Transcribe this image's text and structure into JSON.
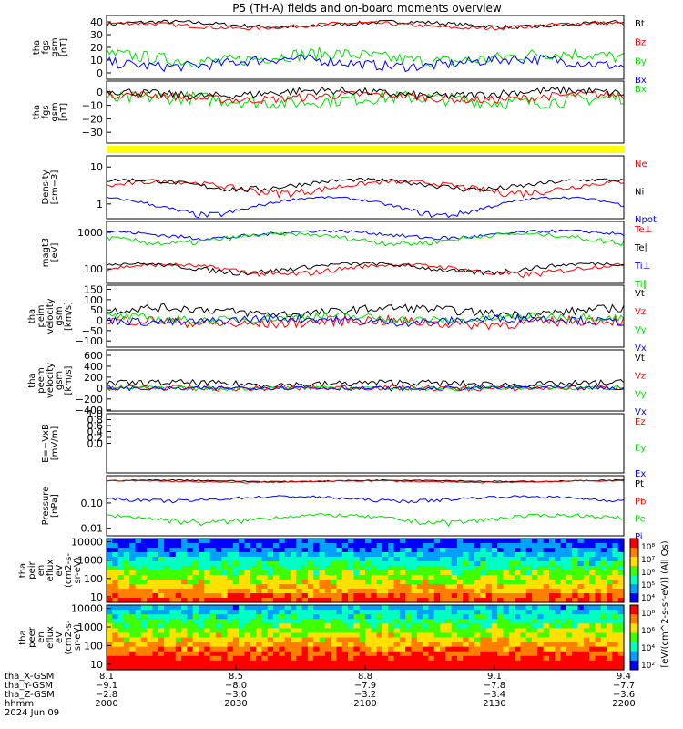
{
  "title": "P5 (TH-A) fields and on-board moments overview",
  "date_label": "2024 Jun 09",
  "colors": {
    "black": "#000000",
    "red": "#ff0000",
    "green": "#00e000",
    "blue": "#0000ff",
    "yellow": "#ffff00"
  },
  "chart_data": [
    {
      "type": "line",
      "panel": "tha_fgs_gsm",
      "ylabel": [
        "tha",
        "fgs",
        "gsm",
        "[nT]"
      ],
      "ylim": [
        -5,
        45
      ],
      "ticks": [
        {
          "v": 40,
          "label": "40"
        },
        {
          "v": 30,
          "label": "30"
        },
        {
          "v": 20,
          "label": "20"
        },
        {
          "v": 10,
          "label": "10"
        },
        {
          "v": 0,
          "label": "0"
        }
      ],
      "series": [
        {
          "name": "Bt",
          "color": "#000000",
          "base": 38,
          "amp": 2,
          "noise": 1.5
        },
        {
          "name": "Bz",
          "color": "#ff0000",
          "base": 37,
          "amp": 2,
          "noise": 1.5
        },
        {
          "name": "By",
          "color": "#00e000",
          "base": 12,
          "amp": 3,
          "noise": 5
        },
        {
          "name": "Bx",
          "color": "#0000ff",
          "base": 8,
          "amp": 3,
          "noise": 4
        }
      ]
    },
    {
      "type": "line",
      "panel": "tha_fgs_gsm_bx",
      "ylabel": [
        "tha",
        "fgs",
        "gsm",
        "[nT]"
      ],
      "ylim": [
        -38,
        8
      ],
      "ticks": [
        {
          "v": 0,
          "label": "0"
        },
        {
          "v": -10,
          "label": "−10"
        },
        {
          "v": -20,
          "label": "−20"
        },
        {
          "v": -30,
          "label": "−30"
        }
      ],
      "series": [
        {
          "name": "Bx",
          "color": "#00e000",
          "base": -6,
          "amp": 2,
          "noise": 5
        },
        {
          "name": "",
          "color": "#ff0000",
          "base": -4,
          "amp": 2,
          "noise": 3
        },
        {
          "name": "",
          "color": "#000000",
          "base": -1,
          "amp": 2,
          "noise": 3
        }
      ]
    },
    {
      "type": "bar",
      "panel": "flag",
      "color": "#ffff00"
    },
    {
      "type": "line",
      "panel": "density",
      "ylabel": [
        "Density",
        "[cm−3]"
      ],
      "log": true,
      "ylim": [
        0.4,
        20
      ],
      "ticks": [
        {
          "v": 10,
          "label": "10"
        },
        {
          "v": 1,
          "label": "1"
        }
      ],
      "series": [
        {
          "name": "Ne",
          "color": "#ff0000",
          "base": 3,
          "amp": 1,
          "noise": 0.5
        },
        {
          "name": "Ni",
          "color": "#000000",
          "base": 3.5,
          "amp": 1,
          "noise": 0.5
        },
        {
          "name": "Npot",
          "color": "#0000ff",
          "base": 1,
          "amp": 0.5,
          "noise": 0.1
        }
      ]
    },
    {
      "type": "line",
      "panel": "temperature",
      "ylabel": [
        "magt3",
        "[eV]"
      ],
      "log": true,
      "ylim": [
        40,
        2000
      ],
      "ticks": [
        {
          "v": 1000,
          "label": "1000"
        },
        {
          "v": 100,
          "label": "100"
        }
      ],
      "series": [
        {
          "name": "Te⊥",
          "color": "#ff0000",
          "base": 100,
          "amp": 30,
          "noise": 15
        },
        {
          "name": "Te∥",
          "color": "#000000",
          "base": 110,
          "amp": 30,
          "noise": 15
        },
        {
          "name": "Ti⊥",
          "color": "#0000ff",
          "base": 900,
          "amp": 200,
          "noise": 100
        },
        {
          "name": "Ti∥",
          "color": "#00e000",
          "base": 700,
          "amp": 200,
          "noise": 100
        }
      ]
    },
    {
      "type": "line",
      "panel": "tha_peim_velocity",
      "ylabel": [
        "tha",
        "peim",
        "velocity",
        "gsm",
        "[km/s]"
      ],
      "ylim": [
        -130,
        170
      ],
      "ticks": [
        {
          "v": 150,
          "label": "150"
        },
        {
          "v": 100,
          "label": "100"
        },
        {
          "v": 50,
          "label": "50"
        },
        {
          "v": 0,
          "label": "0"
        },
        {
          "v": -50,
          "label": "−50"
        },
        {
          "v": -100,
          "label": "−100"
        }
      ],
      "series": [
        {
          "name": "Vt",
          "color": "#000000",
          "base": 45,
          "amp": 15,
          "noise": 20
        },
        {
          "name": "Vz",
          "color": "#ff0000",
          "base": -10,
          "amp": 10,
          "noise": 25
        },
        {
          "name": "Vy",
          "color": "#00e000",
          "base": 10,
          "amp": 10,
          "noise": 20
        },
        {
          "name": "Vx",
          "color": "#0000ff",
          "base": 0,
          "amp": 10,
          "noise": 20
        }
      ]
    },
    {
      "type": "line",
      "panel": "tha_peem_velocity",
      "ylabel": [
        "tha",
        "peem",
        "velocity",
        "gsm",
        "[km/s]"
      ],
      "ylim": [
        -420,
        700
      ],
      "ticks": [
        {
          "v": 600,
          "label": "600"
        },
        {
          "v": 400,
          "label": "400"
        },
        {
          "v": 200,
          "label": "200"
        },
        {
          "v": 0,
          "label": "0"
        },
        {
          "v": -200,
          "label": "−200"
        },
        {
          "v": -400,
          "label": "−400"
        }
      ],
      "series": [
        {
          "name": "Vt",
          "color": "#000000",
          "base": 80,
          "amp": 20,
          "noise": 60
        },
        {
          "name": "Vz",
          "color": "#ff0000",
          "base": 0,
          "amp": 10,
          "noise": 50
        },
        {
          "name": "Vy",
          "color": "#00e000",
          "base": 0,
          "amp": 10,
          "noise": 40
        },
        {
          "name": "Vx",
          "color": "#0000ff",
          "base": 0,
          "amp": 10,
          "noise": 40
        }
      ]
    },
    {
      "type": "line",
      "panel": "efield",
      "ylabel": [
        "E=−VxB",
        "[mV/m]"
      ],
      "ylim": [
        -1,
        1
      ],
      "ticks": [
        {
          "v": 1,
          "label": "1.0"
        },
        {
          "v": 0.8,
          "label": "0.8"
        },
        {
          "v": 0.6,
          "label": "0.6"
        },
        {
          "v": 0.4,
          "label": "0.4"
        },
        {
          "v": 0.2,
          "label": "0.2"
        },
        {
          "v": 0,
          "label": "0.0"
        }
      ],
      "series": [
        {
          "name": "Ez",
          "color": "#ff0000"
        },
        {
          "name": "Ey",
          "color": "#00e000"
        },
        {
          "name": "Ex",
          "color": "#0000ff"
        }
      ]
    },
    {
      "type": "line",
      "panel": "pressure",
      "ylabel": [
        "Pressure",
        "[nPa]"
      ],
      "log": true,
      "ylim": [
        0.005,
        1.2
      ],
      "ticks": [
        {
          "v": 0.1,
          "label": "0.10"
        },
        {
          "v": 0.01,
          "label": "0.01"
        }
      ],
      "series": [
        {
          "name": "Pt",
          "color": "#000000",
          "base": 0.75,
          "amp": 0.05,
          "noise": 0.04
        },
        {
          "name": "Pb",
          "color": "#ff0000",
          "base": 0.7,
          "amp": 0.05,
          "noise": 0.04
        },
        {
          "name": "Pe",
          "color": "#00e000",
          "base": 0.025,
          "amp": 0.008,
          "noise": 0.005
        },
        {
          "name": "Pi",
          "color": "#0000ff",
          "base": 0.15,
          "amp": 0.03,
          "noise": 0.02
        }
      ]
    },
    {
      "type": "heatmap",
      "panel": "tha_peir_en_eflux",
      "ylabel": [
        "tha",
        "peir",
        "en",
        "eflux",
        "eV",
        "(cm2-s-",
        "sr-eV)"
      ],
      "log": true,
      "ylim": [
        5,
        15000
      ],
      "ticks": [
        {
          "v": 10000,
          "label": "10000"
        },
        {
          "v": 1000,
          "label": "1000"
        },
        {
          "v": 100,
          "label": "100"
        },
        {
          "v": 10,
          "label": "10"
        }
      ]
    },
    {
      "type": "heatmap",
      "panel": "tha_peer_en_eflux",
      "ylabel": [
        "tha",
        "peer",
        "en",
        "eflux",
        "eV",
        "(cm2-s-",
        "sr-eV)"
      ],
      "log": true,
      "ylim": [
        5,
        15000
      ],
      "ticks": [
        {
          "v": 10000,
          "label": "10000"
        },
        {
          "v": 1000,
          "label": "1000"
        },
        {
          "v": 100,
          "label": "100"
        },
        {
          "v": 10,
          "label": "10"
        }
      ]
    }
  ],
  "colorbars": [
    {
      "ticks": [
        "10⁸",
        "10⁷",
        "10⁶",
        "10⁵",
        "10⁴"
      ]
    },
    {
      "ticks": [
        "10⁸",
        "10⁶",
        "10⁴",
        "10²"
      ]
    }
  ],
  "colorbar_label": "[eV/(cm^2-s-sr-eV)] (All Qs)",
  "x_axis": {
    "row_labels": [
      "tha_X-GSM",
      "tha_Y-GSM",
      "tha_Z-GSM",
      "hhmm",
      "2024 Jun 09"
    ],
    "ticks": [
      {
        "x": "8.1",
        "y": "−9.1",
        "z": "−2.8",
        "hhmm": "2000"
      },
      {
        "x": "8.5",
        "y": "−8.0",
        "z": "−3.0",
        "hhmm": "2030"
      },
      {
        "x": "8.8",
        "y": "−7.9",
        "z": "−3.2",
        "hhmm": "2100"
      },
      {
        "x": "9.1",
        "y": "−7.8",
        "z": "−3.4",
        "hhmm": "2130"
      },
      {
        "x": "9.4",
        "y": "−7.7",
        "z": "−3.6",
        "hhmm": "2200"
      }
    ]
  }
}
